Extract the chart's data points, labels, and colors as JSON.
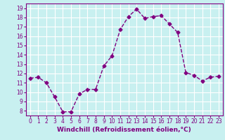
{
  "x": [
    0,
    1,
    2,
    3,
    4,
    5,
    6,
    7,
    8,
    9,
    10,
    11,
    12,
    13,
    14,
    15,
    16,
    17,
    18,
    19,
    20,
    21,
    22,
    23
  ],
  "y": [
    11.5,
    11.6,
    11.0,
    9.5,
    7.9,
    7.9,
    9.8,
    10.3,
    10.3,
    12.8,
    13.9,
    16.7,
    18.1,
    18.9,
    17.9,
    18.1,
    18.2,
    17.3,
    16.4,
    12.1,
    11.8,
    11.2,
    11.6,
    11.7
  ],
  "line_color": "#800080",
  "marker": "D",
  "marker_size": 2.5,
  "bg_color": "#c8f0f0",
  "grid_color": "#ffffff",
  "xlabel": "Windchill (Refroidissement éolien,°C)",
  "ylim": [
    7.5,
    19.5
  ],
  "xlim": [
    -0.5,
    23.5
  ],
  "yticks": [
    8,
    9,
    10,
    11,
    12,
    13,
    14,
    15,
    16,
    17,
    18,
    19
  ],
  "xticks": [
    0,
    1,
    2,
    3,
    4,
    5,
    6,
    7,
    8,
    9,
    10,
    11,
    12,
    13,
    14,
    15,
    16,
    17,
    18,
    19,
    20,
    21,
    22,
    23
  ],
  "tick_color": "#800080",
  "label_color": "#800080",
  "xlabel_fontsize": 6.5,
  "tick_fontsize": 5.5,
  "linewidth": 1.0
}
